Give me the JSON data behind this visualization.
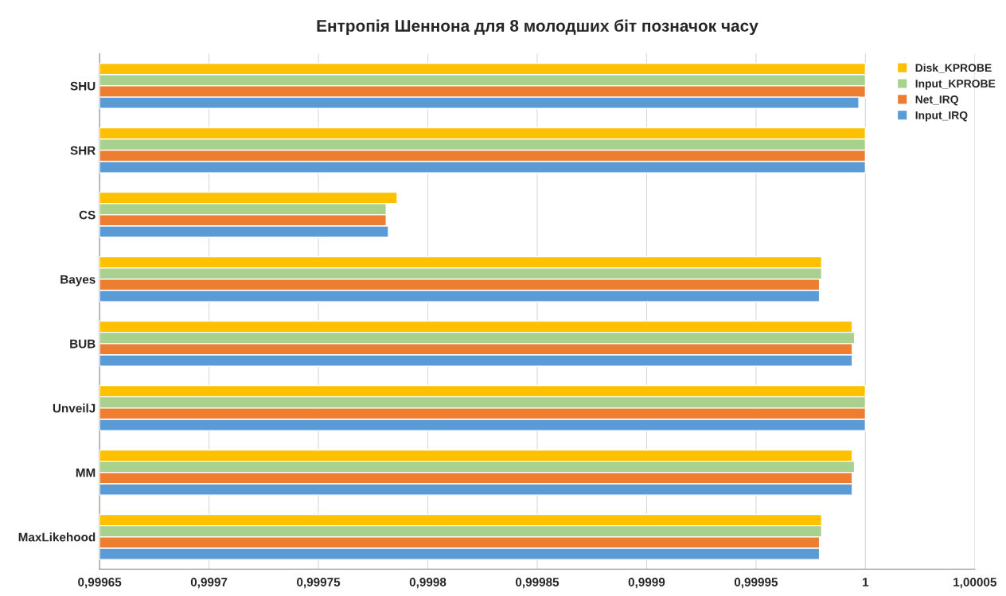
{
  "chart_data": {
    "type": "bar",
    "orientation": "horizontal",
    "title": "Ентропія Шеннона для 8 молодших біт позначок часу",
    "categories": [
      "SHU",
      "SHR",
      "CS",
      "Bayes",
      "BUB",
      "UnveilJ",
      "MM",
      "MaxLikehood"
    ],
    "series": [
      {
        "name": "Disk_KPROBE",
        "color": "#ffc000",
        "values": [
          1,
          1,
          0.999786,
          0.99998,
          0.999994,
          1,
          0.999994,
          0.99998
        ]
      },
      {
        "name": "Input_KPROBE",
        "color": "#a9d18e",
        "values": [
          1,
          1,
          0.999781,
          0.99998,
          0.999995,
          1,
          0.999995,
          0.99998
        ]
      },
      {
        "name": "Net_IRQ",
        "color": "#ed7d31",
        "values": [
          1,
          1,
          0.999781,
          0.999979,
          0.999994,
          1,
          0.999994,
          0.999979
        ]
      },
      {
        "name": "Input_IRQ",
        "color": "#5b9bd5",
        "values": [
          0.999997,
          1,
          0.999782,
          0.999979,
          0.999994,
          1,
          0.999994,
          0.999979
        ]
      }
    ],
    "xlim": [
      0.99965,
      1.00005
    ],
    "xticks": [
      {
        "value": 0.99965,
        "label": "0,99965"
      },
      {
        "value": 0.9997,
        "label": "0,9997"
      },
      {
        "value": 0.99975,
        "label": "0,99975"
      },
      {
        "value": 0.9998,
        "label": "0,9998"
      },
      {
        "value": 0.99985,
        "label": "0,99985"
      },
      {
        "value": 0.9999,
        "label": "0,9999"
      },
      {
        "value": 0.99995,
        "label": "0,99995"
      },
      1,
      {
        "value": 1.00005,
        "label": "1,00005"
      }
    ],
    "grid": "x",
    "legend": "top right"
  }
}
